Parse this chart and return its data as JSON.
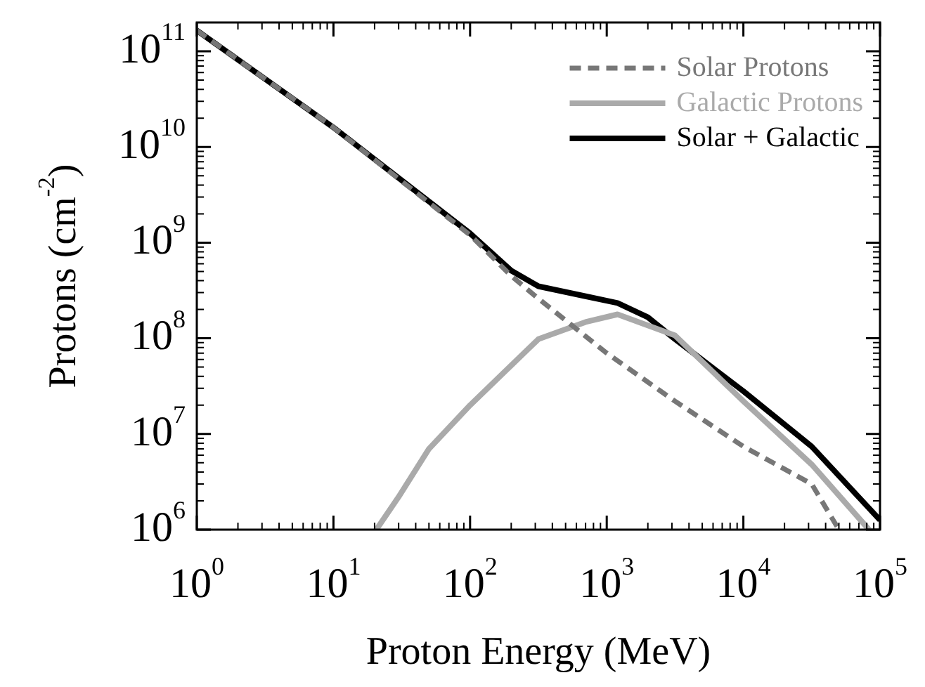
{
  "chart_data": {
    "type": "line",
    "xlabel": "Proton Energy (MeV)",
    "ylabel": "Protons (cm$^{-2}$)",
    "log": "xy",
    "grid": false,
    "legend": "top right",
    "marker": "none",
    "xlim": [
      1,
      100000
    ],
    "ylim": [
      1000000,
      200000000000
    ],
    "xticks": [
      {
        "value": 1,
        "label": "10$^{0}$"
      },
      {
        "value": 10,
        "label": "10$^{1}$"
      },
      {
        "value": 100,
        "label": "10$^{2}$"
      },
      {
        "value": 1000,
        "label": "10$^{3}$"
      },
      {
        "value": 10000,
        "label": "10$^{4}$"
      },
      {
        "value": 100000,
        "label": "10$^{5}$"
      }
    ],
    "yticks": [
      {
        "value": 1000000,
        "label": "10$^{6}$"
      },
      {
        "value": 10000000,
        "label": "10$^{7}$"
      },
      {
        "value": 100000000,
        "label": "10$^{8}$"
      },
      {
        "value": 1000000000,
        "label": "10$^{9}$"
      },
      {
        "value": 10000000000,
        "label": "10$^{10}$"
      },
      {
        "value": 100000000000,
        "label": "10$^{11}$"
      }
    ],
    "series": [
      {
        "name": "Solar Protons",
        "color": "#777777",
        "line_style": "dashed",
        "x": [
          1,
          10,
          100,
          200,
          316,
          1000,
          3162,
          10000,
          31623,
          50000
        ],
        "values": [
          165000000000,
          16000000000,
          1200000000,
          450000000,
          260000000,
          70000000,
          22000000,
          7400000,
          3000000,
          1000000
        ]
      },
      {
        "name": "Galactic Protons",
        "color": "#aaaaaa",
        "line_style": "solid",
        "x": [
          20.6,
          30,
          50,
          100,
          316,
          700,
          1200,
          3162,
          10000,
          31623,
          83000
        ],
        "values": [
          1000000,
          2200000,
          7000000,
          20000000,
          98000000,
          148000000,
          178000000,
          107000000,
          22000000,
          4800000,
          1000000
        ]
      },
      {
        "name": "Solar + Galactic",
        "color": "#000000",
        "line_style": "solid",
        "x": [
          1,
          10,
          100,
          200,
          316,
          700,
          1200,
          2000,
          3162,
          10000,
          31623,
          100000
        ],
        "values": [
          165000000000,
          16000000000,
          1250000000,
          510000000,
          350000000,
          275000000,
          234000000,
          166000000,
          98000000,
          28000000,
          7400000,
          1260000
        ]
      }
    ]
  }
}
